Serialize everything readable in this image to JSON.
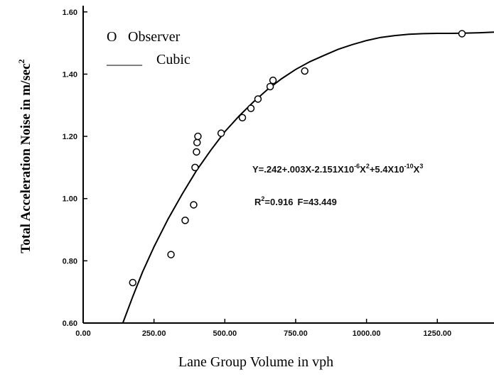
{
  "chart_data": {
    "type": "scatter",
    "xlabel": "Lane Group Volume in vph",
    "ylabel": "Total Acceleration Noise in m/sec",
    "ylabel_sup": "2",
    "xlim": [
      0,
      1450
    ],
    "ylim": [
      0.6,
      1.62
    ],
    "x_ticks": [
      0,
      250,
      500,
      750,
      1000,
      1250
    ],
    "x_tick_labels": [
      "0.00",
      "250.00",
      "500.00",
      "750.00",
      "1000.00",
      "1250.00"
    ],
    "y_ticks": [
      0.6,
      0.8,
      1.0,
      1.2,
      1.4,
      1.6
    ],
    "y_tick_labels": [
      "0.60",
      "0.80",
      "1.00",
      "1.20",
      "1.40",
      "1.60"
    ],
    "grid": false,
    "legend_position": "top-left",
    "legend": {
      "marker_symbol": "O",
      "observed_label": "Observer",
      "line_symbol": "_____",
      "fit_label": "Cubic"
    },
    "series": [
      {
        "name": "Observer",
        "kind": "points",
        "x": [
          175,
          310,
          360,
          390,
          395,
          400,
          402,
          405,
          487,
          562,
          592,
          617,
          660,
          670,
          782,
          1337
        ],
        "y": [
          0.73,
          0.82,
          0.93,
          0.98,
          1.1,
          1.15,
          1.18,
          1.2,
          1.21,
          1.26,
          1.29,
          1.32,
          1.36,
          1.38,
          1.41,
          1.53
        ]
      },
      {
        "name": "Cubic",
        "kind": "curve",
        "x": [
          140,
          175,
          210,
          250,
          300,
          350,
          400,
          450,
          500,
          550,
          600,
          650,
          700,
          750,
          800,
          850,
          900,
          950,
          1000,
          1050,
          1100,
          1150,
          1200,
          1250,
          1300,
          1350,
          1400,
          1450
        ],
        "y": [
          0.6,
          0.685,
          0.765,
          0.845,
          0.935,
          1.015,
          1.09,
          1.155,
          1.215,
          1.265,
          1.31,
          1.35,
          1.385,
          1.415,
          1.44,
          1.46,
          1.48,
          1.495,
          1.508,
          1.518,
          1.524,
          1.528,
          1.53,
          1.531,
          1.531,
          1.532,
          1.533,
          1.535
        ]
      }
    ],
    "annotations": {
      "equation": {
        "prefix": "Y=.242+.003X-2.151X10",
        "exp1": "-6",
        "mid1": "X",
        "exp2": "2",
        "mid2": "+5.4X10",
        "exp3": "-10",
        "mid3": "X",
        "exp4": "3"
      },
      "stats": {
        "r_label": "R",
        "r_sup": "2",
        "r_value": "=0.916",
        "f_text": "F=43.449"
      }
    }
  }
}
